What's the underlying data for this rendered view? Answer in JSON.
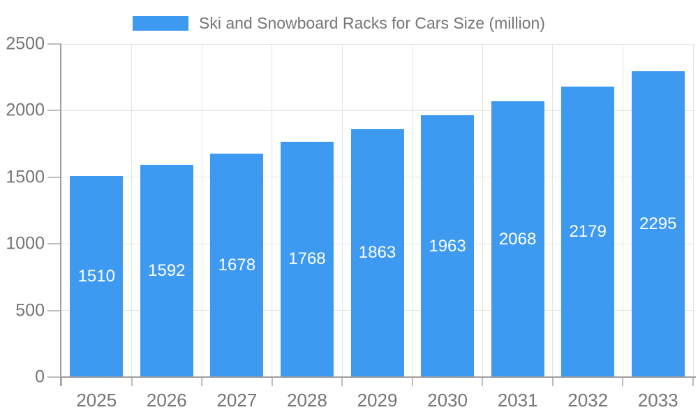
{
  "legend": {
    "label": "Ski and Snowboard Racks for Cars Size (million)"
  },
  "chart_data": {
    "type": "bar",
    "title": "Ski and Snowboard Racks for Cars Size (million)",
    "series_name": "Ski and Snowboard Racks for Cars Size (million)",
    "categories": [
      "2025",
      "2026",
      "2027",
      "2028",
      "2029",
      "2030",
      "2031",
      "2032",
      "2033"
    ],
    "values": [
      1510,
      1592,
      1678,
      1768,
      1863,
      1963,
      2068,
      2179,
      2295
    ],
    "bar_labels": [
      "1510",
      "1592",
      "1678",
      "1768",
      "1863",
      "1963",
      "2068",
      "2179",
      "2295"
    ],
    "xlabel": "",
    "ylabel": "",
    "ylim": [
      0,
      2500
    ],
    "yticks": [
      0,
      500,
      1000,
      1500,
      2000,
      2500
    ],
    "ytick_labels": [
      "0",
      "500",
      "1000",
      "1500",
      "2000",
      "2500"
    ],
    "grid": true,
    "legend_position": "top-center",
    "bar_label_position": "inside-center"
  },
  "colors": {
    "bar": "#3D9AF0",
    "bar_label": "#FFFFFF",
    "grid": "#E4E4E4",
    "axis": "#9E9E9E",
    "tick": "#BDBDBD",
    "axis_text": "#757575",
    "legend_text": "#757575",
    "background": "#FFFFFF"
  }
}
